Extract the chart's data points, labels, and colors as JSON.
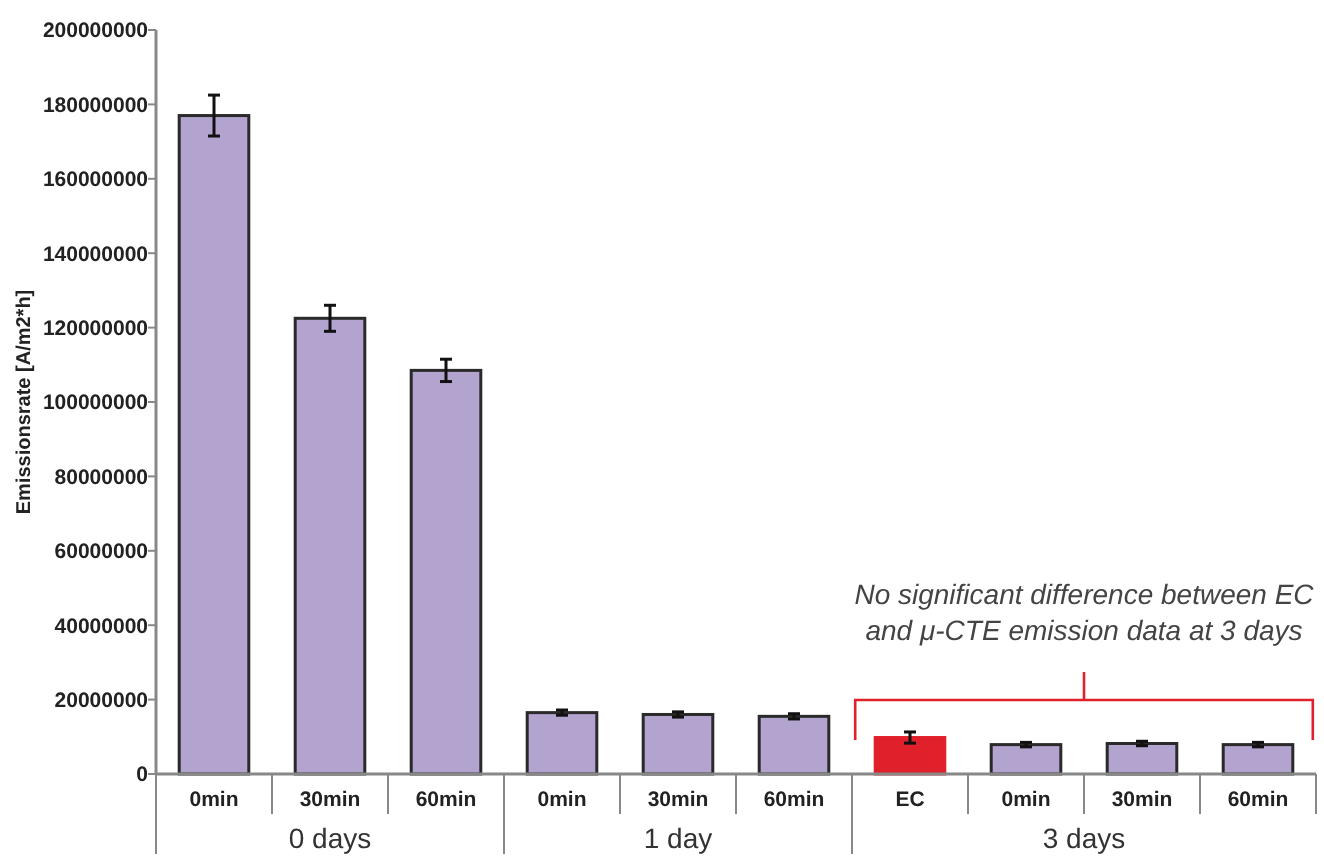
{
  "chart_data": {
    "type": "bar",
    "ylabel": "Emissionsrate [A/m2*h]",
    "categories": [
      "0min",
      "30min",
      "60min",
      "0min",
      "30min",
      "60min",
      "EC",
      "0min",
      "30min",
      "60min"
    ],
    "values": [
      177000000,
      122500000,
      108500000,
      16500000,
      16000000,
      15500000,
      9800000,
      7900000,
      8200000,
      7900000
    ],
    "errors": [
      5500000,
      3500000,
      3000000,
      700000,
      700000,
      700000,
      1500000,
      600000,
      600000,
      600000
    ],
    "colors": [
      "#b3a3cf",
      "#b3a3cf",
      "#b3a3cf",
      "#b3a3cf",
      "#b3a3cf",
      "#b3a3cf",
      "#e0202a",
      "#b3a3cf",
      "#b3a3cf",
      "#b3a3cf"
    ],
    "ylim": [
      0,
      200000000
    ],
    "yticks": [
      0,
      20000000,
      40000000,
      60000000,
      80000000,
      100000000,
      120000000,
      140000000,
      160000000,
      180000000,
      200000000
    ],
    "grid": false,
    "annotations": [
      "0 days",
      "1 day",
      "3 days",
      "No significant difference between EC\nand μ-CTE emission data at 3 days"
    ]
  }
}
